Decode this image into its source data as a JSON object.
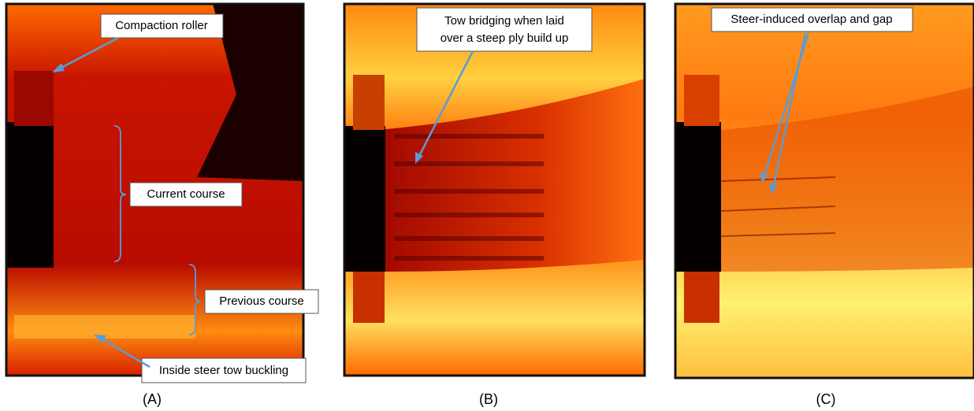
{
  "panels": [
    {
      "label": "(A)",
      "annotations": [
        "Compaction roller",
        "Current course",
        "Previous course",
        "Inside steer tow buckling"
      ]
    },
    {
      "label": "(B)",
      "annotations": [
        [
          "Tow bridging when laid",
          "over a steep ply build up"
        ]
      ]
    },
    {
      "label": "(C)",
      "annotations": [
        "Steer-induced overlap and gap"
      ]
    }
  ]
}
